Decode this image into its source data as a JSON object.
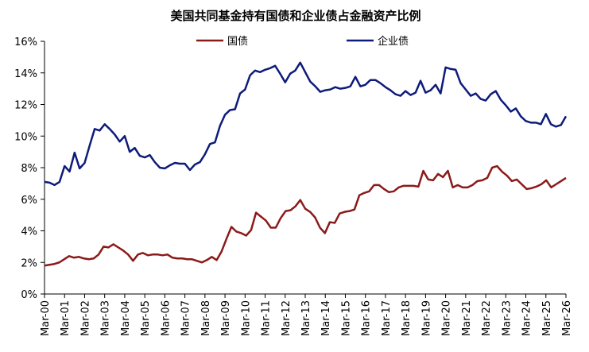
{
  "chart_data": {
    "type": "line",
    "title": "美国共同基金持有国债和企业债占金融资产比例",
    "xlabel": "",
    "ylabel": "",
    "ylim": [
      0,
      16
    ],
    "yticks": [
      "0%",
      "2%",
      "4%",
      "6%",
      "8%",
      "10%",
      "12%",
      "14%",
      "16%"
    ],
    "xticks": [
      "Mar-00",
      "Mar-01",
      "Mar-02",
      "Mar-03",
      "Mar-04",
      "Mar-05",
      "Mar-06",
      "Mar-07",
      "Mar-08",
      "Mar-09",
      "Mar-10",
      "Mar-11",
      "Mar-12",
      "Mar-13",
      "Mar-14",
      "Mar-15",
      "Mar-16",
      "Mar-17",
      "Mar-18",
      "Mar-19",
      "Mar-20",
      "Mar-21",
      "Mar-22",
      "Mar-23",
      "Mar-24",
      "Mar-25",
      "Mar-26"
    ],
    "legend_position": "top-center",
    "grid": false,
    "series": [
      {
        "name": "国债",
        "color": "#8b1a1a",
        "values": [
          1.8,
          1.85,
          1.9,
          2.0,
          2.2,
          2.4,
          2.3,
          2.35,
          2.25,
          2.2,
          2.25,
          2.5,
          3.0,
          2.95,
          3.15,
          2.95,
          2.75,
          2.5,
          2.1,
          2.5,
          2.6,
          2.45,
          2.5,
          2.5,
          2.45,
          2.5,
          2.3,
          2.25,
          2.25,
          2.2,
          2.2,
          2.1,
          2.0,
          2.15,
          2.35,
          2.15,
          2.7,
          3.5,
          4.25,
          3.95,
          3.85,
          3.7,
          4.05,
          5.15,
          4.9,
          4.65,
          4.2,
          4.2,
          4.8,
          5.25,
          5.3,
          5.55,
          5.95,
          5.4,
          5.2,
          4.85,
          4.2,
          3.85,
          4.55,
          4.5,
          5.1,
          5.2,
          5.25,
          5.35,
          6.25,
          6.4,
          6.5,
          6.9,
          6.9,
          6.65,
          6.45,
          6.5,
          6.75,
          6.85,
          6.85,
          6.85,
          6.8,
          7.8,
          7.25,
          7.2,
          7.6,
          7.4,
          7.8,
          6.75,
          6.9,
          6.75,
          6.75,
          6.9,
          7.15,
          7.2,
          7.35,
          8.0,
          8.1,
          7.75,
          7.5,
          7.15,
          7.25,
          6.95,
          6.65,
          6.7,
          6.8,
          6.95,
          7.2,
          6.75,
          6.95,
          7.15,
          7.35
        ]
      },
      {
        "name": "企业债",
        "color": "#0d1b7a",
        "values": [
          7.1,
          7.05,
          6.9,
          7.1,
          8.1,
          7.75,
          8.95,
          7.95,
          8.3,
          9.4,
          10.45,
          10.35,
          10.75,
          10.45,
          10.1,
          9.65,
          10.0,
          9.0,
          9.25,
          8.75,
          8.65,
          8.8,
          8.35,
          8.0,
          7.95,
          8.15,
          8.3,
          8.25,
          8.25,
          7.85,
          8.2,
          8.35,
          8.85,
          9.5,
          9.6,
          10.65,
          11.35,
          11.65,
          11.7,
          12.7,
          12.95,
          13.85,
          14.15,
          14.05,
          14.2,
          14.3,
          14.45,
          13.95,
          13.4,
          13.95,
          14.15,
          14.65,
          14.05,
          13.45,
          13.15,
          12.8,
          12.9,
          12.95,
          13.1,
          13.0,
          13.05,
          13.15,
          13.75,
          13.15,
          13.25,
          13.55,
          13.55,
          13.35,
          13.1,
          12.9,
          12.65,
          12.55,
          12.85,
          12.6,
          12.75,
          13.5,
          12.75,
          12.9,
          13.25,
          12.7,
          14.35,
          14.25,
          14.2,
          13.35,
          12.95,
          12.55,
          12.7,
          12.35,
          12.25,
          12.65,
          12.85,
          12.3,
          11.95,
          11.55,
          11.75,
          11.25,
          10.95,
          10.85,
          10.85,
          10.75,
          11.4,
          10.75,
          10.6,
          10.7,
          11.25
        ]
      }
    ]
  }
}
